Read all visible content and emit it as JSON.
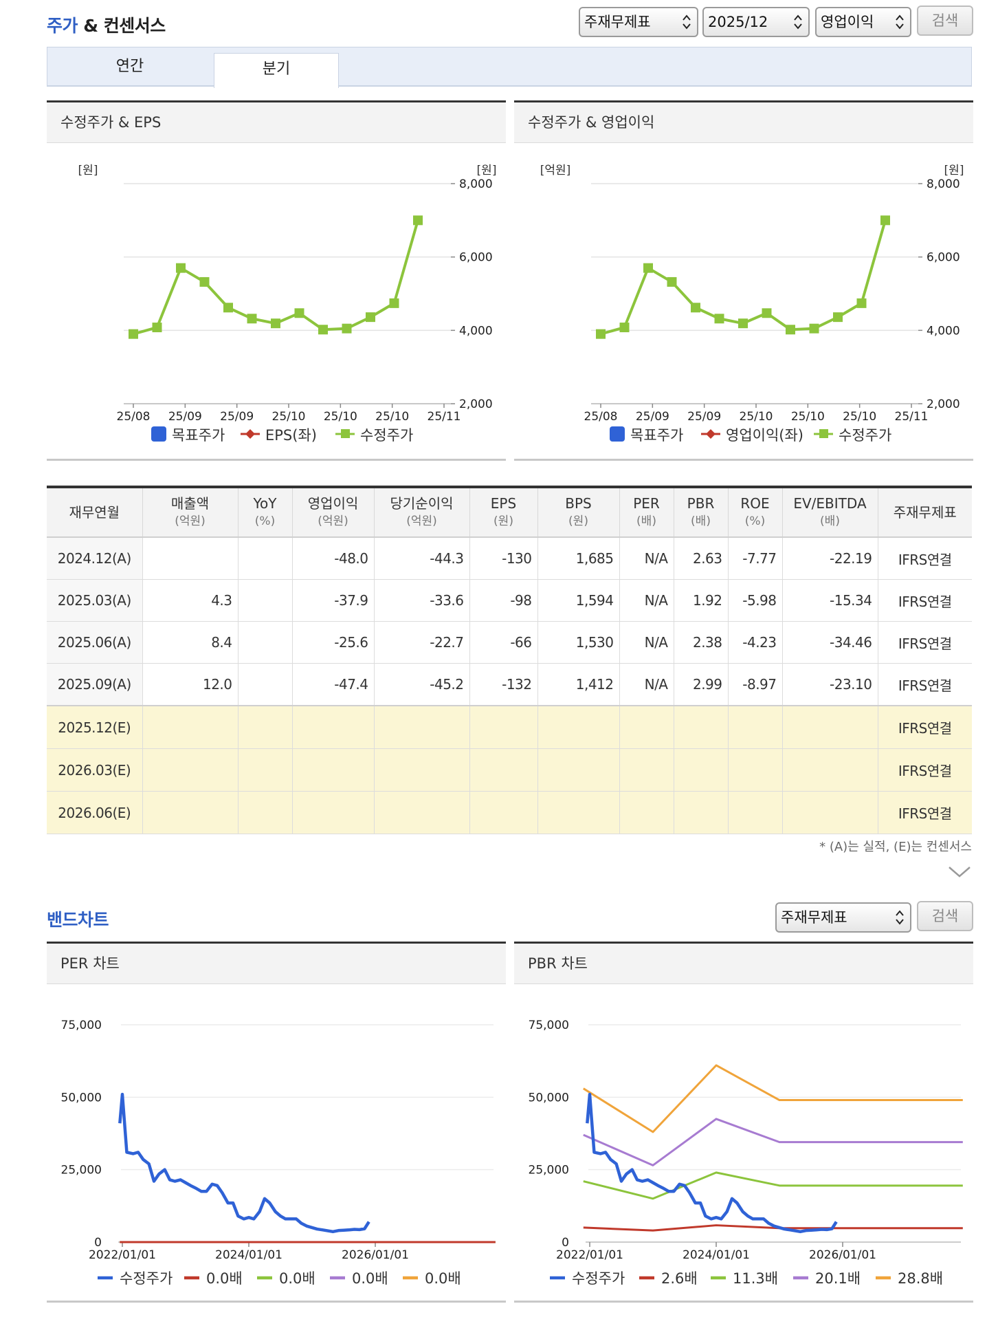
{
  "header": {
    "title_accent": "주가",
    "title_rest": " & 컨센서스",
    "select_type": "주재무제표",
    "select_period": "2025/12",
    "select_metric": "영업이익",
    "search_label": "검색"
  },
  "tabs": [
    {
      "label": "연간",
      "active": false
    },
    {
      "label": "분기",
      "active": true
    }
  ],
  "band_header": {
    "title": "밴드차트",
    "select_type": "주재무제표",
    "search_label": "검색"
  },
  "footnote": "* (A)는 실적, (E)는 컨센서스",
  "table": {
    "headers": [
      {
        "label": "재무연월",
        "unit": ""
      },
      {
        "label": "매출액",
        "unit": "(억원)"
      },
      {
        "label": "YoY",
        "unit": "(%)"
      },
      {
        "label": "영업이익",
        "unit": "(억원)"
      },
      {
        "label": "당기순이익",
        "unit": "(억원)"
      },
      {
        "label": "EPS",
        "unit": "(원)"
      },
      {
        "label": "BPS",
        "unit": "(원)"
      },
      {
        "label": "PER",
        "unit": "(배)"
      },
      {
        "label": "PBR",
        "unit": "(배)"
      },
      {
        "label": "ROE",
        "unit": "(%)"
      },
      {
        "label": "EV/EBITDA",
        "unit": "(배)"
      },
      {
        "label": "주재무제표",
        "unit": ""
      }
    ],
    "rows": [
      [
        "2024.12(A)",
        "",
        "",
        "-48.0",
        "-44.3",
        "-130",
        "1,685",
        "N/A",
        "2.63",
        "-7.77",
        "-22.19",
        "IFRS연결"
      ],
      [
        "2025.03(A)",
        "4.3",
        "",
        "-37.9",
        "-33.6",
        "-98",
        "1,594",
        "N/A",
        "1.92",
        "-5.98",
        "-15.34",
        "IFRS연결"
      ],
      [
        "2025.06(A)",
        "8.4",
        "",
        "-25.6",
        "-22.7",
        "-66",
        "1,530",
        "N/A",
        "2.38",
        "-4.23",
        "-34.46",
        "IFRS연결"
      ],
      [
        "2025.09(A)",
        "12.0",
        "",
        "-47.4",
        "-45.2",
        "-132",
        "1,412",
        "N/A",
        "2.99",
        "-8.97",
        "-23.10",
        "IFRS연결"
      ],
      [
        "2025.12(E)",
        "",
        "",
        "",
        "",
        "",
        "",
        "",
        "",
        "",
        "",
        "IFRS연결"
      ],
      [
        "2026.03(E)",
        "",
        "",
        "",
        "",
        "",
        "",
        "",
        "",
        "",
        "",
        "IFRS연결"
      ],
      [
        "2026.06(E)",
        "",
        "",
        "",
        "",
        "",
        "",
        "",
        "",
        "",
        "",
        "IFRS연결"
      ]
    ]
  },
  "colors": {
    "price_green": "#8cc43c",
    "target_blue": "#2f62d6",
    "eps_red": "#c0392b",
    "band_red": "#c0392b",
    "band_green": "#8cc43c",
    "band_purple": "#a77bd1",
    "band_orange": "#f0a43a"
  },
  "chart_data": [
    {
      "type": "line",
      "title": "수정주가 & EPS",
      "left_unit": "[원]",
      "right_unit": "[원]",
      "x_tick_labels": [
        "25/08",
        "25/09",
        "25/09",
        "25/10",
        "25/10",
        "25/10",
        "25/11"
      ],
      "y_right_ticks": [
        "8,000",
        "6,000",
        "4,000",
        "2,000"
      ],
      "ylim": [
        2000,
        8000
      ],
      "legend": [
        "목표주가",
        "EPS(좌)",
        "수정주가"
      ],
      "series": [
        {
          "name": "수정주가",
          "axis": "right",
          "values": [
            3900,
            4080,
            5700,
            5320,
            4620,
            4320,
            4190,
            4470,
            4020,
            4050,
            4360,
            4740,
            7000
          ]
        }
      ]
    },
    {
      "type": "line",
      "title": "수정주가 & 영업이익",
      "left_unit": "[억원]",
      "right_unit": "[원]",
      "x_tick_labels": [
        "25/08",
        "25/09",
        "25/09",
        "25/10",
        "25/10",
        "25/10",
        "25/11"
      ],
      "y_right_ticks": [
        "8,000",
        "6,000",
        "4,000",
        "2,000"
      ],
      "ylim": [
        2000,
        8000
      ],
      "legend": [
        "목표주가",
        "영업이익(좌)",
        "수정주가"
      ],
      "series": [
        {
          "name": "수정주가",
          "axis": "right",
          "values": [
            3900,
            4080,
            5700,
            5320,
            4620,
            4320,
            4190,
            4470,
            4020,
            4050,
            4360,
            4740,
            7000
          ]
        }
      ]
    },
    {
      "type": "line",
      "title": "PER 차트",
      "x_tick_labels": [
        "2022/01/01",
        "2024/01/01",
        "2026/01/01"
      ],
      "y_ticks": [
        "75,000",
        "50,000",
        "25,000",
        "0"
      ],
      "ylim": [
        0,
        75000
      ],
      "legend": [
        "수정주가",
        "0.0배",
        "0.0배",
        "0.0배",
        "0.0배"
      ],
      "series": [
        {
          "name": "수정주가",
          "values": [
            [
              2021.96,
              41000
            ],
            [
              2022.0,
              51000
            ],
            [
              2022.07,
              31000
            ],
            [
              2022.17,
              30500
            ],
            [
              2022.25,
              31000
            ],
            [
              2022.33,
              28500
            ],
            [
              2022.42,
              27000
            ],
            [
              2022.5,
              21000
            ],
            [
              2022.58,
              23500
            ],
            [
              2022.67,
              25000
            ],
            [
              2022.75,
              21500
            ],
            [
              2022.83,
              21000
            ],
            [
              2022.92,
              21500
            ],
            [
              2023.0,
              20500
            ],
            [
              2023.08,
              19500
            ],
            [
              2023.17,
              18500
            ],
            [
              2023.25,
              17500
            ],
            [
              2023.33,
              17500
            ],
            [
              2023.42,
              20000
            ],
            [
              2023.5,
              19500
            ],
            [
              2023.58,
              17000
            ],
            [
              2023.67,
              13500
            ],
            [
              2023.75,
              13500
            ],
            [
              2023.83,
              9000
            ],
            [
              2023.92,
              8000
            ],
            [
              2024.0,
              8500
            ],
            [
              2024.08,
              8000
            ],
            [
              2024.17,
              10500
            ],
            [
              2024.25,
              15000
            ],
            [
              2024.33,
              13500
            ],
            [
              2024.42,
              10500
            ],
            [
              2024.5,
              9000
            ],
            [
              2024.58,
              8000
            ],
            [
              2024.67,
              8000
            ],
            [
              2024.75,
              8000
            ],
            [
              2024.83,
              6500
            ],
            [
              2024.92,
              5500
            ],
            [
              2025.0,
              5000
            ],
            [
              2025.08,
              4500
            ],
            [
              2025.17,
              4200
            ],
            [
              2025.25,
              3900
            ],
            [
              2025.33,
              3600
            ],
            [
              2025.42,
              4000
            ],
            [
              2025.5,
              4100
            ],
            [
              2025.58,
              4200
            ],
            [
              2025.67,
              4400
            ],
            [
              2025.75,
              4300
            ],
            [
              2025.83,
              4600
            ],
            [
              2025.9,
              7000
            ]
          ]
        },
        {
          "name": "0.0배",
          "values": [
            [
              2021.96,
              0
            ],
            [
              2027.9,
              0
            ]
          ]
        },
        {
          "name": "0.0배",
          "values": [
            [
              2021.96,
              0
            ],
            [
              2027.9,
              0
            ]
          ]
        },
        {
          "name": "0.0배",
          "values": [
            [
              2021.96,
              0
            ],
            [
              2027.9,
              0
            ]
          ]
        },
        {
          "name": "0.0배",
          "values": [
            [
              2021.96,
              0
            ],
            [
              2027.9,
              0
            ]
          ]
        }
      ]
    },
    {
      "type": "line",
      "title": "PBR 차트",
      "x_tick_labels": [
        "2022/01/01",
        "2024/01/01",
        "2026/01/01"
      ],
      "y_ticks": [
        "75,000",
        "50,000",
        "25,000",
        "0"
      ],
      "ylim": [
        0,
        75000
      ],
      "legend": [
        "수정주가",
        "2.6배",
        "11.3배",
        "20.1배",
        "28.8배"
      ],
      "series": [
        {
          "name": "수정주가",
          "values": [
            [
              2021.96,
              41000
            ],
            [
              2022.0,
              51000
            ],
            [
              2022.07,
              31000
            ],
            [
              2022.17,
              30500
            ],
            [
              2022.25,
              31000
            ],
            [
              2022.33,
              28500
            ],
            [
              2022.42,
              27000
            ],
            [
              2022.5,
              21000
            ],
            [
              2022.58,
              23500
            ],
            [
              2022.67,
              25000
            ],
            [
              2022.75,
              21500
            ],
            [
              2022.83,
              21000
            ],
            [
              2022.92,
              21500
            ],
            [
              2023.0,
              20500
            ],
            [
              2023.08,
              19500
            ],
            [
              2023.17,
              18500
            ],
            [
              2023.25,
              17500
            ],
            [
              2023.33,
              17500
            ],
            [
              2023.42,
              20000
            ],
            [
              2023.5,
              19500
            ],
            [
              2023.58,
              17000
            ],
            [
              2023.67,
              13500
            ],
            [
              2023.75,
              13500
            ],
            [
              2023.83,
              9000
            ],
            [
              2023.92,
              8000
            ],
            [
              2024.0,
              8500
            ],
            [
              2024.08,
              8000
            ],
            [
              2024.17,
              10500
            ],
            [
              2024.25,
              15000
            ],
            [
              2024.33,
              13500
            ],
            [
              2024.42,
              10500
            ],
            [
              2024.5,
              9000
            ],
            [
              2024.58,
              8000
            ],
            [
              2024.67,
              8000
            ],
            [
              2024.75,
              8000
            ],
            [
              2024.83,
              6500
            ],
            [
              2024.92,
              5500
            ],
            [
              2025.0,
              5000
            ],
            [
              2025.08,
              4500
            ],
            [
              2025.17,
              4200
            ],
            [
              2025.25,
              3900
            ],
            [
              2025.33,
              3600
            ],
            [
              2025.42,
              4000
            ],
            [
              2025.5,
              4100
            ],
            [
              2025.58,
              4200
            ],
            [
              2025.67,
              4400
            ],
            [
              2025.75,
              4300
            ],
            [
              2025.83,
              4600
            ],
            [
              2025.9,
              7000
            ]
          ]
        },
        {
          "name": "2.6배",
          "values": [
            [
              2021.9,
              5000
            ],
            [
              2023.0,
              4000
            ],
            [
              2024.0,
              5800
            ],
            [
              2025.0,
              4800
            ],
            [
              2027.9,
              4800
            ]
          ]
        },
        {
          "name": "11.3배",
          "values": [
            [
              2021.9,
              21000
            ],
            [
              2023.0,
              15000
            ],
            [
              2024.0,
              24000
            ],
            [
              2025.0,
              19500
            ],
            [
              2027.9,
              19500
            ]
          ]
        },
        {
          "name": "20.1배",
          "values": [
            [
              2021.9,
              37000
            ],
            [
              2023.0,
              26500
            ],
            [
              2024.0,
              42500
            ],
            [
              2025.0,
              34500
            ],
            [
              2027.9,
              34500
            ]
          ]
        },
        {
          "name": "28.8배",
          "values": [
            [
              2021.9,
              53000
            ],
            [
              2023.0,
              38000
            ],
            [
              2024.0,
              61000
            ],
            [
              2025.0,
              49000
            ],
            [
              2027.9,
              49000
            ]
          ]
        }
      ]
    }
  ]
}
